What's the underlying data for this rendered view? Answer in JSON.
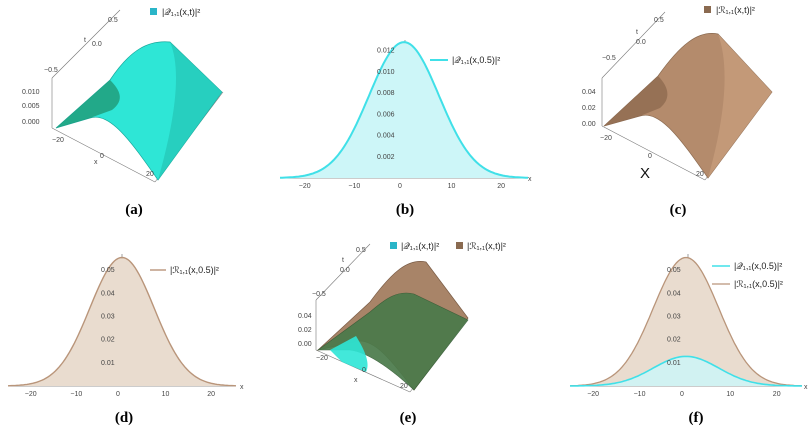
{
  "colors": {
    "q": "#40e0e8",
    "q_fill": "#cdf6f8",
    "r": "#b9957a",
    "r_fill": "#e9dccf",
    "surf_q": "#2ee6d6",
    "surf_r": "#a88468",
    "surf_dark": "#4a7a4a"
  },
  "panels": {
    "a": {
      "caption": "(a)",
      "legend": "|𝒬₁,₁(x,t)|²",
      "t_label": "t",
      "x_label": "x",
      "t_ticks": [
        "0.5",
        "0.0",
        "−0.5"
      ],
      "z_ticks": [
        "0.010",
        "0.005",
        "0.000"
      ],
      "x_ticks": [
        "−20",
        "0",
        "20"
      ]
    },
    "b": {
      "caption": "(b)",
      "legend": "|𝒬₁,₁(x,0.5)|²",
      "x_label": "x",
      "y_ticks": [
        "0.012",
        "0.010",
        "0.008",
        "0.006",
        "0.004",
        "0.002"
      ],
      "x_ticks": [
        "−20",
        "−10",
        "0",
        "10",
        "20"
      ]
    },
    "c": {
      "caption": "(c)",
      "legend": "|ℛ₁,₁(x,t)|²",
      "t_label": "t",
      "x_label": "X",
      "t_ticks": [
        "0.5",
        "0.0",
        "−0.5"
      ],
      "z_ticks": [
        "0.04",
        "0.02",
        "0.00"
      ],
      "x_ticks": [
        "−20",
        "0",
        "20"
      ]
    },
    "d": {
      "caption": "(d)",
      "legend": "|ℛ₁,₁(x,0.5)|²",
      "x_label": "x",
      "y_ticks": [
        "0.05",
        "0.04",
        "0.03",
        "0.02",
        "0.01"
      ],
      "x_ticks": [
        "−20",
        "−10",
        "0",
        "10",
        "20"
      ]
    },
    "e": {
      "caption": "(e)",
      "legend_q": "|𝒬₁,₁(x,t)|²",
      "legend_r": "|ℛ₁,₁(x,t)|²",
      "t_label": "t",
      "x_label": "x",
      "t_ticks": [
        "0.5",
        "0.0",
        "−0.5"
      ],
      "z_ticks": [
        "0.04",
        "0.02",
        "0.00"
      ],
      "x_ticks": [
        "−20",
        "0",
        "20"
      ]
    },
    "f": {
      "caption": "(f)",
      "legend_q": "|𝒬₁,₁(x,0.5)|²",
      "legend_r": "|ℛ₁,₁(x,0.5)|²",
      "x_label": "x",
      "y_ticks": [
        "0.05",
        "0.04",
        "0.03",
        "0.02",
        "0.01"
      ],
      "x_ticks": [
        "−20",
        "−10",
        "0",
        "10",
        "20"
      ]
    }
  },
  "chart_data": [
    {
      "type": "area",
      "panel": "b",
      "x_range": [
        -25,
        25
      ],
      "ylim": [
        0,
        0.013
      ],
      "series": [
        {
          "name": "|𝒬₁,₁(x,0.5)|²",
          "peak_x": 0,
          "peak_y": 0.0128,
          "half_width": 8.3
        }
      ]
    },
    {
      "type": "area",
      "panel": "d",
      "x_range": [
        -25,
        25
      ],
      "ylim": [
        0,
        0.057
      ],
      "series": [
        {
          "name": "|ℛ₁,₁(x,0.5)|²",
          "peak_x": 0,
          "peak_y": 0.0555,
          "half_width": 8.3
        }
      ]
    },
    {
      "type": "area",
      "panel": "f",
      "x_range": [
        -25,
        25
      ],
      "ylim": [
        0,
        0.057
      ],
      "series": [
        {
          "name": "|𝒬₁,₁(x,0.5)|²",
          "peak_x": 0,
          "peak_y": 0.0128,
          "half_width": 8.3
        },
        {
          "name": "|ℛ₁,₁(x,0.5)|²",
          "peak_x": 0,
          "peak_y": 0.0555,
          "half_width": 8.3
        }
      ]
    }
  ]
}
